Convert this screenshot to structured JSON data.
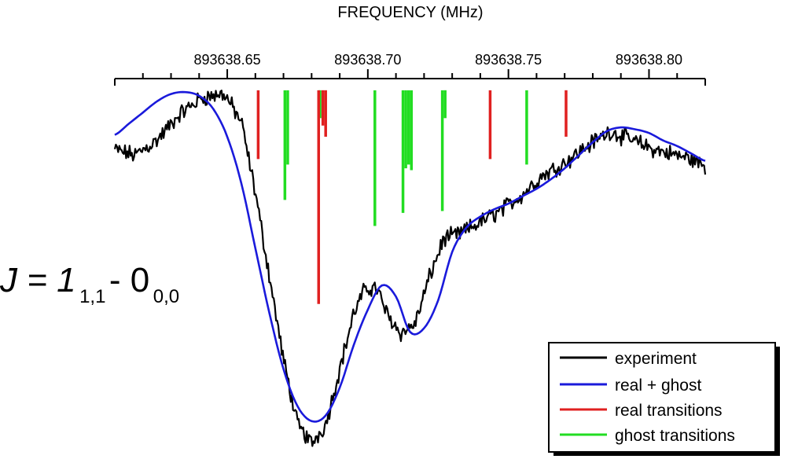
{
  "chart_data": {
    "type": "line",
    "x_axis": {
      "title": "FREQUENCY  (MHz)",
      "position": "top",
      "range": [
        893638.61,
        893638.82
      ],
      "ticks": [
        893638.65,
        893638.7,
        893638.75,
        893638.8
      ],
      "tick_labels": [
        "893638.65",
        "893638.70",
        "893638.75",
        "893638.80"
      ],
      "minor_step": 0.01
    },
    "y_axis": {
      "visible": false
    },
    "annotation": {
      "main": "J = 1",
      "sub1": "1,1",
      "dash": " - 0",
      "sub2": "0,0"
    },
    "colors": {
      "experiment": "#000000",
      "fit": "#1a1adb",
      "real": "#e02020",
      "ghost": "#22dd22"
    },
    "series": [
      {
        "name": "experiment",
        "x": [
          893638.61,
          893638.617,
          893638.625,
          893638.633,
          893638.641,
          893638.649,
          893638.655,
          893638.66,
          893638.665,
          893638.67,
          893638.675,
          893638.68,
          893638.685,
          893638.69,
          893638.695,
          893638.699,
          893638.703,
          893638.707,
          893638.712,
          893638.717,
          893638.722,
          893638.727,
          893638.733,
          893638.74,
          893638.747,
          893638.755,
          893638.762,
          893638.77,
          893638.778,
          893638.786,
          893638.794,
          893638.802,
          893638.81,
          893638.815,
          893638.82
        ],
        "y": [
          0.63,
          0.6,
          0.68,
          0.82,
          0.91,
          0.93,
          0.78,
          0.4,
          -0.05,
          -0.5,
          -0.85,
          -0.95,
          -0.85,
          -0.55,
          -0.25,
          -0.12,
          -0.11,
          -0.26,
          -0.36,
          -0.3,
          -0.05,
          0.15,
          0.18,
          0.24,
          0.3,
          0.39,
          0.49,
          0.56,
          0.65,
          0.73,
          0.68,
          0.63,
          0.6,
          0.58,
          0.54
        ]
      },
      {
        "name": "real + ghost",
        "x": [
          893638.61,
          893638.615,
          893638.62,
          893638.625,
          893638.63,
          893638.635,
          893638.64,
          893638.645,
          893638.65,
          893638.655,
          893638.66,
          893638.665,
          893638.67,
          893638.675,
          893638.68,
          893638.685,
          893638.69,
          893638.695,
          893638.7,
          893638.705,
          893638.71,
          893638.715,
          893638.72,
          893638.725,
          893638.73,
          893638.735,
          893638.74,
          893638.745,
          893638.75,
          893638.755,
          893638.76,
          893638.765,
          893638.77,
          893638.775,
          893638.78,
          893638.785,
          893638.79,
          893638.795,
          893638.8,
          893638.805,
          893638.81,
          893638.815,
          893638.82
        ],
        "y": [
          0.71,
          0.77,
          0.83,
          0.89,
          0.93,
          0.94,
          0.92,
          0.85,
          0.7,
          0.45,
          0.1,
          -0.25,
          -0.55,
          -0.75,
          -0.83,
          -0.8,
          -0.65,
          -0.42,
          -0.23,
          -0.1,
          -0.16,
          -0.35,
          -0.33,
          -0.18,
          0.08,
          0.21,
          0.27,
          0.31,
          0.34,
          0.38,
          0.42,
          0.47,
          0.53,
          0.6,
          0.67,
          0.73,
          0.75,
          0.74,
          0.72,
          0.68,
          0.65,
          0.61,
          0.57
        ]
      }
    ],
    "stick_series": [
      {
        "name": "real transitions",
        "x": [
          893638.661,
          893638.6825,
          893638.684,
          893638.685,
          893638.7435,
          893638.7705
        ],
        "top": [
          0.95,
          0.95,
          0.95,
          0.95,
          0.95,
          0.95
        ],
        "bottom": [
          0.58,
          -0.2,
          0.76,
          0.7,
          0.58,
          0.7
        ]
      },
      {
        "name": "ghost transitions",
        "x": [
          893638.6705,
          893638.6715,
          893638.683,
          893638.7025,
          893638.7125,
          893638.7135,
          893638.7145,
          893638.7155,
          893638.7265,
          893638.7275,
          893638.7565
        ],
        "top": [
          0.95,
          0.95,
          0.95,
          0.95,
          0.95,
          0.95,
          0.95,
          0.95,
          0.95,
          0.95,
          0.95
        ],
        "bottom": [
          0.36,
          0.55,
          0.8,
          0.22,
          0.29,
          0.53,
          0.55,
          0.52,
          0.3,
          0.8,
          0.55
        ]
      }
    ],
    "legend": {
      "placement": "bottom-right",
      "entries": [
        "experiment",
        "real + ghost",
        "real transitions",
        "ghost transitions"
      ]
    }
  }
}
